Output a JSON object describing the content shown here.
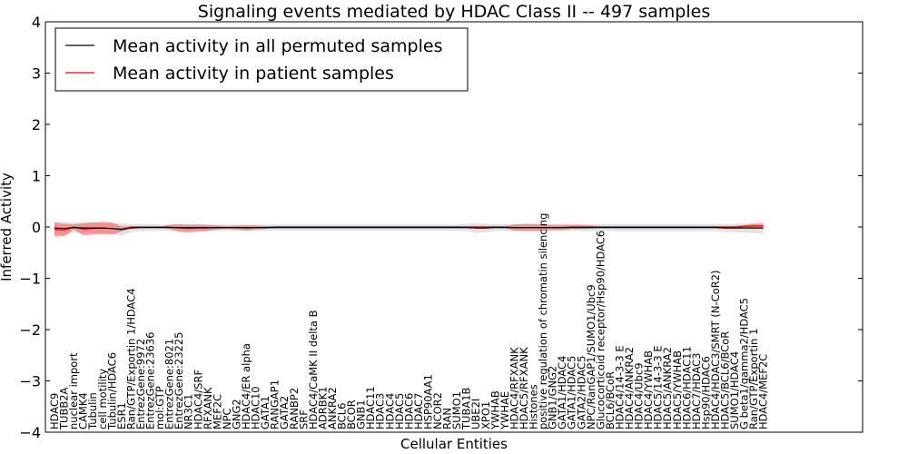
{
  "chart_data": {
    "type": "line",
    "title": "Signaling events mediated by HDAC Class II -- 497 samples",
    "xlabel": "Cellular Entities",
    "ylabel": "Inferred Activity",
    "ylim": [
      -4,
      4
    ],
    "yticks": [
      -4,
      -3,
      -2,
      -1,
      0,
      1,
      2,
      3,
      4
    ],
    "ytick_labels": [
      "−4",
      "−3",
      "−2",
      "−1",
      "0",
      "1",
      "2",
      "3",
      "4"
    ],
    "grid": false,
    "legend_position": "top-left",
    "categories": [
      "HDAC9",
      "TUBB2A",
      "nuclear import",
      "CAMK4",
      "Tubulin",
      "cell motility",
      "Tubulin/HDAC6",
      "ESR1",
      "Ran/GTP/Exportin 1/HDAC4",
      "EntrezGene:9972",
      "EntrezGene:23636",
      "mol:GTP",
      "EntrezGene:8021",
      "EntrezGene:23225",
      "NR3C1",
      "HDAC4/SRF",
      "RFXANK",
      "MEF2C",
      "NPC",
      "GNG2",
      "HDAC4/ER alpha",
      "HDAC10",
      "GATA1",
      "RANGAP1",
      "GATA2",
      "RANBP2",
      "SRF",
      "HDAC4/CaMK II delta B",
      "ADRBK1",
      "ANKRA2",
      "BCL6",
      "BCOR",
      "GNB1",
      "HDAC11",
      "HDAC3",
      "HDAC4",
      "HDAC5",
      "HDAC6",
      "HDAC7",
      "HSP90AA1",
      "NCOR2",
      "RAN",
      "SUMO1",
      "TUBA1B",
      "UBE2I",
      "XPO1",
      "YWHAB",
      "YWHAE",
      "HDAC4/RFXANK",
      "HDAC5/RFXANK",
      "Histones",
      "positive regulation of chromatin silencing",
      "GNB1/GNG2",
      "GATA1/HDAC4",
      "GATA1/HDAC5",
      "GATA2/HDAC5",
      "NPC/RanGAP1/SUMO1/Ubc9",
      "Glucocorticoid receptor/Hsp90/HDAC6",
      "BCL6/BCoR",
      "HDAC4/14-3-3 E",
      "HDAC4/ANKRA2",
      "HDAC4/Ubc9",
      "HDAC4/YWHAB",
      "HDAC5/14-3-3 E",
      "HDAC5/ANKRA2",
      "HDAC5/YWHAB",
      "HDAC6/HDAC11",
      "HDAC7/HDAC3",
      "Hsp90/HDAC6",
      "HDAC4/HDAC3/SMRT (N-CoR2)",
      "HDAC5/BCL6/BCoR",
      "SUMO1/HDAC4",
      "G beta1/gamma2/HDAC5",
      "Ran/GTP/Exportin 1",
      "HDAC4/MEF2C"
    ],
    "series": [
      {
        "name": "Mean activity in all permuted samples",
        "color": "#000000",
        "values": [
          -0.02,
          -0.03,
          -0.01,
          -0.02,
          -0.02,
          -0.02,
          -0.03,
          -0.05,
          -0.02,
          -0.01,
          -0.01,
          -0.01,
          -0.01,
          -0.01,
          -0.01,
          -0.01,
          -0.01,
          -0.01,
          -0.01,
          -0.01,
          -0.01,
          -0.01,
          -0.01,
          -0.01,
          -0.01,
          -0.01,
          -0.01,
          -0.01,
          -0.01,
          -0.01,
          -0.01,
          -0.01,
          -0.01,
          -0.01,
          -0.01,
          -0.01,
          -0.01,
          -0.01,
          -0.01,
          -0.01,
          -0.01,
          -0.01,
          -0.01,
          -0.01,
          -0.02,
          -0.02,
          -0.01,
          -0.01,
          -0.01,
          -0.01,
          -0.01,
          -0.01,
          -0.01,
          -0.01,
          -0.01,
          -0.01,
          -0.01,
          -0.01,
          -0.01,
          -0.01,
          -0.01,
          -0.01,
          -0.01,
          -0.01,
          -0.01,
          -0.01,
          -0.01,
          -0.01,
          -0.01,
          -0.01,
          -0.02,
          -0.02,
          -0.02,
          -0.02,
          -0.02
        ],
        "band": [
          0.12,
          0.13,
          0.1,
          0.1,
          0.1,
          0.1,
          0.1,
          0.12,
          0.08,
          0.07,
          0.07,
          0.06,
          0.06,
          0.06,
          0.06,
          0.06,
          0.06,
          0.06,
          0.06,
          0.06,
          0.06,
          0.06,
          0.06,
          0.06,
          0.06,
          0.06,
          0.06,
          0.06,
          0.06,
          0.06,
          0.06,
          0.06,
          0.06,
          0.06,
          0.06,
          0.06,
          0.06,
          0.06,
          0.06,
          0.06,
          0.06,
          0.06,
          0.06,
          0.07,
          0.1,
          0.08,
          0.07,
          0.07,
          0.07,
          0.07,
          0.07,
          0.07,
          0.07,
          0.07,
          0.07,
          0.07,
          0.07,
          0.07,
          0.07,
          0.07,
          0.07,
          0.07,
          0.07,
          0.07,
          0.07,
          0.07,
          0.07,
          0.07,
          0.07,
          0.07,
          0.08,
          0.08,
          0.09,
          0.1,
          0.12
        ]
      },
      {
        "name": "Mean activity in patient samples",
        "color": "#ff0000",
        "values": [
          -0.05,
          -0.06,
          0.0,
          -0.04,
          -0.03,
          -0.02,
          -0.03,
          -0.04,
          0.0,
          0.0,
          0.0,
          0.0,
          0.0,
          -0.02,
          -0.03,
          -0.02,
          -0.02,
          -0.01,
          -0.01,
          -0.01,
          -0.02,
          -0.01,
          -0.01,
          0.0,
          0.0,
          0.0,
          0.0,
          0.0,
          0.0,
          0.0,
          0.0,
          0.0,
          0.0,
          0.0,
          0.0,
          0.0,
          0.0,
          0.0,
          0.0,
          0.0,
          0.0,
          0.0,
          0.0,
          0.0,
          0.0,
          0.0,
          0.0,
          0.0,
          -0.01,
          -0.01,
          -0.01,
          -0.01,
          -0.01,
          -0.01,
          0.0,
          0.0,
          0.0,
          0.0,
          0.0,
          0.0,
          0.0,
          0.0,
          0.0,
          0.0,
          0.0,
          0.0,
          0.0,
          0.0,
          0.0,
          0.0,
          0.0,
          0.0,
          0.01,
          0.02,
          0.02
        ],
        "band": [
          0.14,
          0.12,
          0.05,
          0.12,
          0.12,
          0.12,
          0.12,
          0.05,
          0.01,
          0.01,
          0.01,
          0.01,
          0.04,
          0.08,
          0.08,
          0.07,
          0.06,
          0.04,
          0.03,
          0.04,
          0.05,
          0.04,
          0.03,
          0.02,
          0.02,
          0.02,
          0.02,
          0.02,
          0.02,
          0.02,
          0.02,
          0.02,
          0.02,
          0.02,
          0.02,
          0.02,
          0.02,
          0.02,
          0.02,
          0.02,
          0.02,
          0.02,
          0.02,
          0.02,
          0.02,
          0.02,
          0.02,
          0.02,
          0.06,
          0.07,
          0.07,
          0.06,
          0.05,
          0.05,
          0.04,
          0.04,
          0.03,
          0.02,
          0.02,
          0.02,
          0.02,
          0.02,
          0.02,
          0.02,
          0.02,
          0.02,
          0.02,
          0.02,
          0.02,
          0.02,
          0.02,
          0.02,
          0.03,
          0.04,
          0.04
        ]
      }
    ]
  }
}
